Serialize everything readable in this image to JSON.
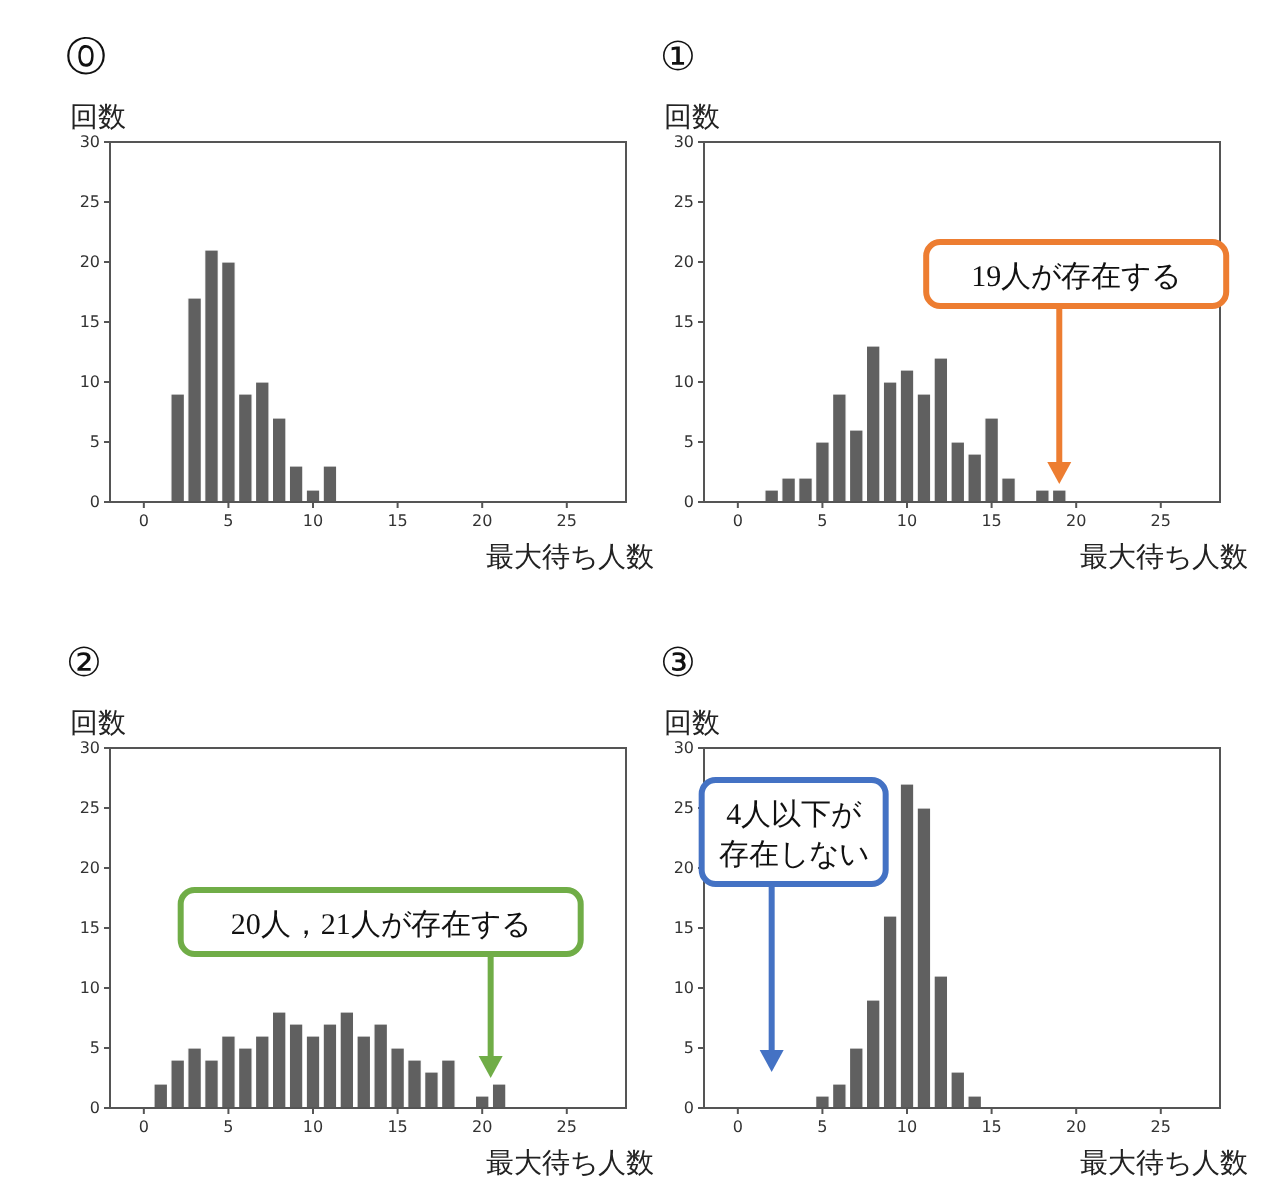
{
  "chart_data": [
    {
      "type": "bar",
      "title": "⓪",
      "ylabel": "回数",
      "xlabel": "最大待ち人数",
      "x": [
        2,
        3,
        4,
        5,
        6,
        7,
        8,
        9,
        10,
        11
      ],
      "values": [
        9,
        17,
        21,
        20,
        9,
        10,
        7,
        3,
        1,
        3
      ],
      "color": "#606060",
      "xlim": [
        -2,
        28.5
      ],
      "ylim": [
        0,
        30
      ],
      "xticks": [
        0,
        5,
        10,
        15,
        20,
        25
      ],
      "yticks": [
        0,
        5,
        10,
        15,
        20,
        25,
        30
      ]
    },
    {
      "type": "bar",
      "title": "①",
      "ylabel": "回数",
      "xlabel": "最大待ち人数",
      "x": [
        2,
        3,
        4,
        5,
        6,
        7,
        8,
        9,
        10,
        11,
        12,
        13,
        14,
        15,
        16,
        18,
        19
      ],
      "values": [
        1,
        2,
        2,
        5,
        9,
        6,
        13,
        10,
        11,
        9,
        12,
        5,
        4,
        7,
        2,
        1,
        1
      ],
      "color": "#606060",
      "xlim": [
        -2,
        28.5
      ],
      "ylim": [
        0,
        30
      ],
      "xticks": [
        0,
        5,
        10,
        15,
        20,
        25
      ],
      "yticks": [
        0,
        5,
        10,
        15,
        20,
        25,
        30
      ],
      "annotations": [
        "19人が存在する"
      ]
    },
    {
      "type": "bar",
      "title": "②",
      "ylabel": "回数",
      "xlabel": "最大待ち人数",
      "x": [
        1,
        2,
        3,
        4,
        5,
        6,
        7,
        8,
        9,
        10,
        11,
        12,
        13,
        14,
        15,
        16,
        17,
        18,
        20,
        21
      ],
      "values": [
        2,
        4,
        5,
        4,
        6,
        5,
        6,
        8,
        7,
        6,
        7,
        8,
        6,
        7,
        5,
        4,
        3,
        4,
        1,
        2
      ],
      "color": "#606060",
      "xlim": [
        -2,
        28.5
      ],
      "ylim": [
        0,
        30
      ],
      "xticks": [
        0,
        5,
        10,
        15,
        20,
        25
      ],
      "yticks": [
        0,
        5,
        10,
        15,
        20,
        25,
        30
      ],
      "annotations": [
        "20人，21人が存在する"
      ]
    },
    {
      "type": "bar",
      "title": "③",
      "ylabel": "回数",
      "xlabel": "最大待ち人数",
      "x": [
        5,
        6,
        7,
        8,
        9,
        10,
        11,
        12,
        13,
        14
      ],
      "values": [
        1,
        2,
        5,
        9,
        16,
        27,
        25,
        11,
        3,
        1
      ],
      "color": "#606060",
      "xlim": [
        -2,
        28.5
      ],
      "ylim": [
        0,
        30
      ],
      "xticks": [
        0,
        5,
        10,
        15,
        20,
        25
      ],
      "yticks": [
        0,
        5,
        10,
        15,
        20,
        25,
        30
      ],
      "annotations": [
        "4人以下が存在しない"
      ]
    }
  ]
}
